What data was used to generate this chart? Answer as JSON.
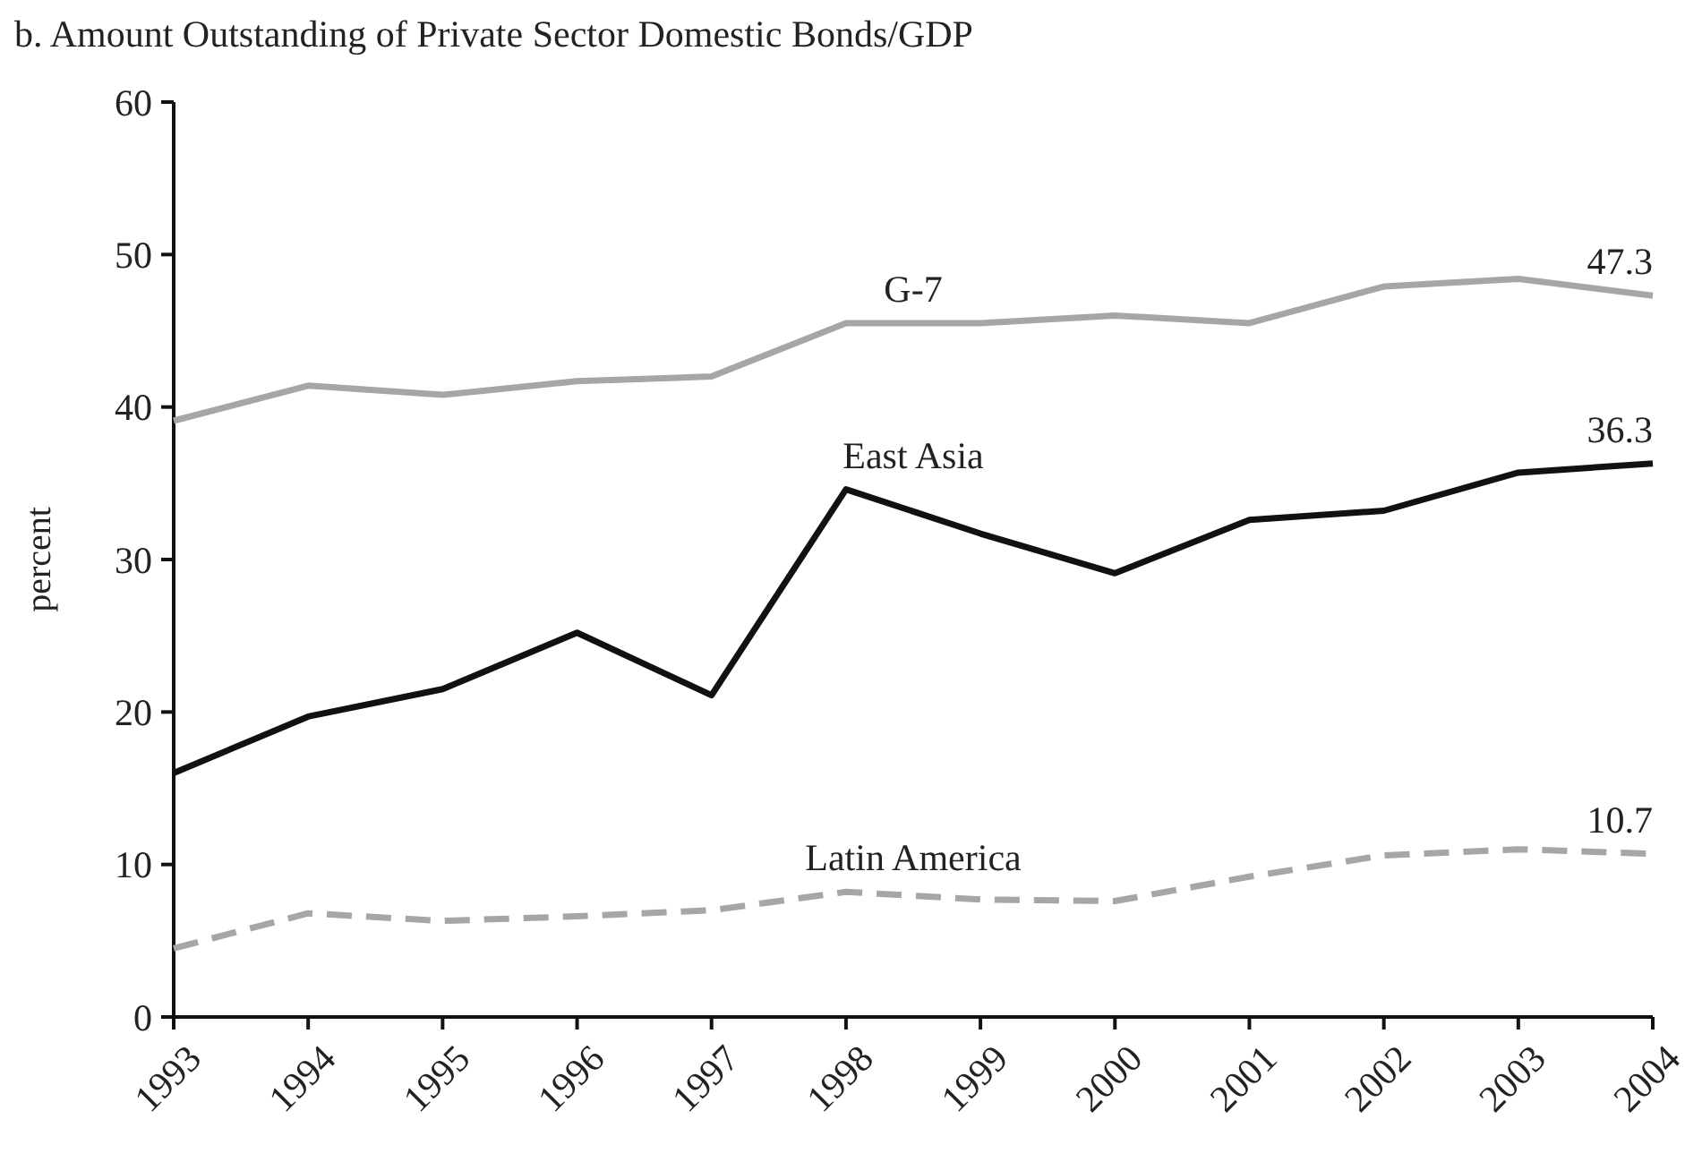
{
  "chart_data": {
    "type": "line",
    "title": "b. Amount Outstanding of Private Sector Domestic Bonds/GDP",
    "ylabel": "percent",
    "categories": [
      "1993",
      "1994",
      "1995",
      "1996",
      "1997",
      "1998",
      "1999",
      "2000",
      "2001",
      "2002",
      "2003",
      "2004"
    ],
    "ylim": [
      0,
      60
    ],
    "yticks": [
      0,
      10,
      20,
      30,
      40,
      50,
      60
    ],
    "grid": false,
    "marker": "none",
    "series": [
      {
        "name": "G-7",
        "color": "#a6a6a6",
        "line_style": "solid",
        "values": [
          39.1,
          41.4,
          40.8,
          41.7,
          42.0,
          45.5,
          45.5,
          46.0,
          45.5,
          47.9,
          48.4,
          47.3
        ],
        "value_labels": [
          null,
          null,
          null,
          null,
          null,
          null,
          null,
          null,
          null,
          null,
          null,
          "47.3"
        ]
      },
      {
        "name": "East Asia",
        "color": "#111111",
        "line_style": "solid",
        "values": [
          16.0,
          19.7,
          21.5,
          25.2,
          21.1,
          34.6,
          31.7,
          29.1,
          32.6,
          33.2,
          35.7,
          36.3
        ],
        "value_labels": [
          null,
          null,
          null,
          null,
          null,
          null,
          null,
          null,
          null,
          null,
          null,
          "36.3"
        ]
      },
      {
        "name": "Latin America",
        "color": "#a6a6a6",
        "line_style": "dashed",
        "values": [
          4.5,
          6.8,
          6.3,
          6.6,
          7.0,
          8.2,
          7.7,
          7.6,
          9.2,
          10.6,
          11.0,
          10.7
        ],
        "value_labels": [
          null,
          null,
          null,
          null,
          null,
          null,
          null,
          null,
          null,
          null,
          null,
          "10.7"
        ]
      }
    ]
  }
}
